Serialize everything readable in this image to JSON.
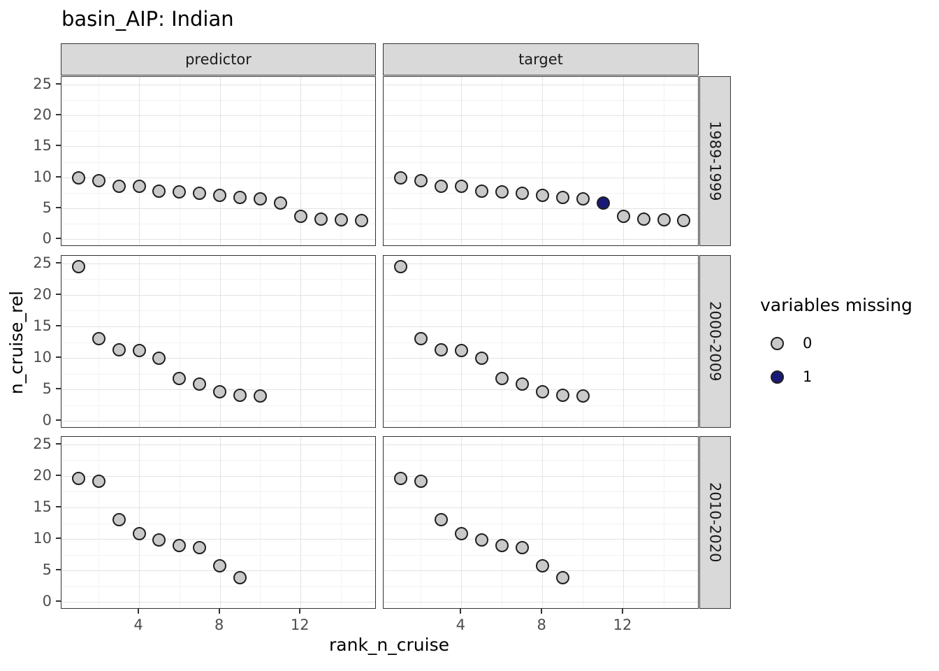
{
  "title": "basin_AIP: Indian",
  "chart_data": {
    "type": "scatter",
    "title": "basin_AIP: Indian",
    "xlabel": "rank_n_cruise",
    "ylabel": "n_cruise_rel",
    "facet_cols": [
      "predictor",
      "target"
    ],
    "facet_rows": [
      "1989-1999",
      "2000-2009",
      "2010-2020"
    ],
    "x_ticks": [
      4,
      8,
      12
    ],
    "y_ticks": [
      0,
      5,
      10,
      15,
      20,
      25
    ],
    "x_minor_gridlines": [
      2,
      6,
      10,
      14
    ],
    "y_minor_gridlines": [
      2.5,
      7.5,
      12.5,
      17.5,
      22.5
    ],
    "xlim": [
      0.16,
      15.76
    ],
    "ylim": [
      -1.2,
      26.2
    ],
    "grid": true,
    "legend_position": "right",
    "legend": {
      "title": "variables missing",
      "items": [
        {
          "label": "0",
          "value": 0,
          "color": "#c9c9c9"
        },
        {
          "label": "1",
          "value": 1,
          "color": "#191978"
        }
      ]
    },
    "rows": [
      {
        "period": "1989-1999",
        "ranks": [
          1,
          2,
          3,
          4,
          5,
          6,
          7,
          8,
          9,
          10,
          11,
          12,
          13,
          14,
          15
        ],
        "values": [
          9.9,
          9.5,
          8.6,
          8.5,
          7.8,
          7.6,
          7.4,
          7.1,
          6.8,
          6.5,
          5.8,
          3.7,
          3.2,
          3.1,
          3.0
        ],
        "missing": {
          "predictor": [
            0,
            0,
            0,
            0,
            0,
            0,
            0,
            0,
            0,
            0,
            0,
            0,
            0,
            0,
            0
          ],
          "target": [
            0,
            0,
            0,
            0,
            0,
            0,
            0,
            0,
            0,
            0,
            1,
            0,
            0,
            0,
            0
          ]
        }
      },
      {
        "period": "2000-2009",
        "ranks": [
          1,
          2,
          3,
          4,
          5,
          6,
          7,
          8,
          9,
          10
        ],
        "values": [
          24.5,
          13.0,
          11.3,
          11.2,
          9.9,
          6.7,
          5.8,
          4.6,
          4.1,
          4.0
        ],
        "missing": {
          "predictor": [
            0,
            0,
            0,
            0,
            0,
            0,
            0,
            0,
            0,
            0
          ],
          "target": [
            0,
            0,
            0,
            0,
            0,
            0,
            0,
            0,
            0,
            0
          ]
        }
      },
      {
        "period": "2010-2020",
        "ranks": [
          1,
          2,
          3,
          4,
          5,
          6,
          7,
          8,
          9
        ],
        "values": [
          19.6,
          19.2,
          13.1,
          10.8,
          9.8,
          8.9,
          8.6,
          5.7,
          3.8
        ],
        "missing": {
          "predictor": [
            0,
            0,
            0,
            0,
            0,
            0,
            0,
            0,
            0
          ],
          "target": [
            0,
            0,
            0,
            0,
            0,
            0,
            0,
            0,
            0
          ]
        }
      }
    ]
  },
  "colors": {
    "point_fill_0": "#c9c9c9",
    "point_fill_1": "#191978",
    "point_stroke": "#1f1f1f",
    "strip_fill": "#d9d9d9",
    "panel_border": "#333333",
    "grid_major": "#e3e3e3",
    "grid_minor": "#f2f2f2",
    "tick_label": "#4d4d4d"
  }
}
